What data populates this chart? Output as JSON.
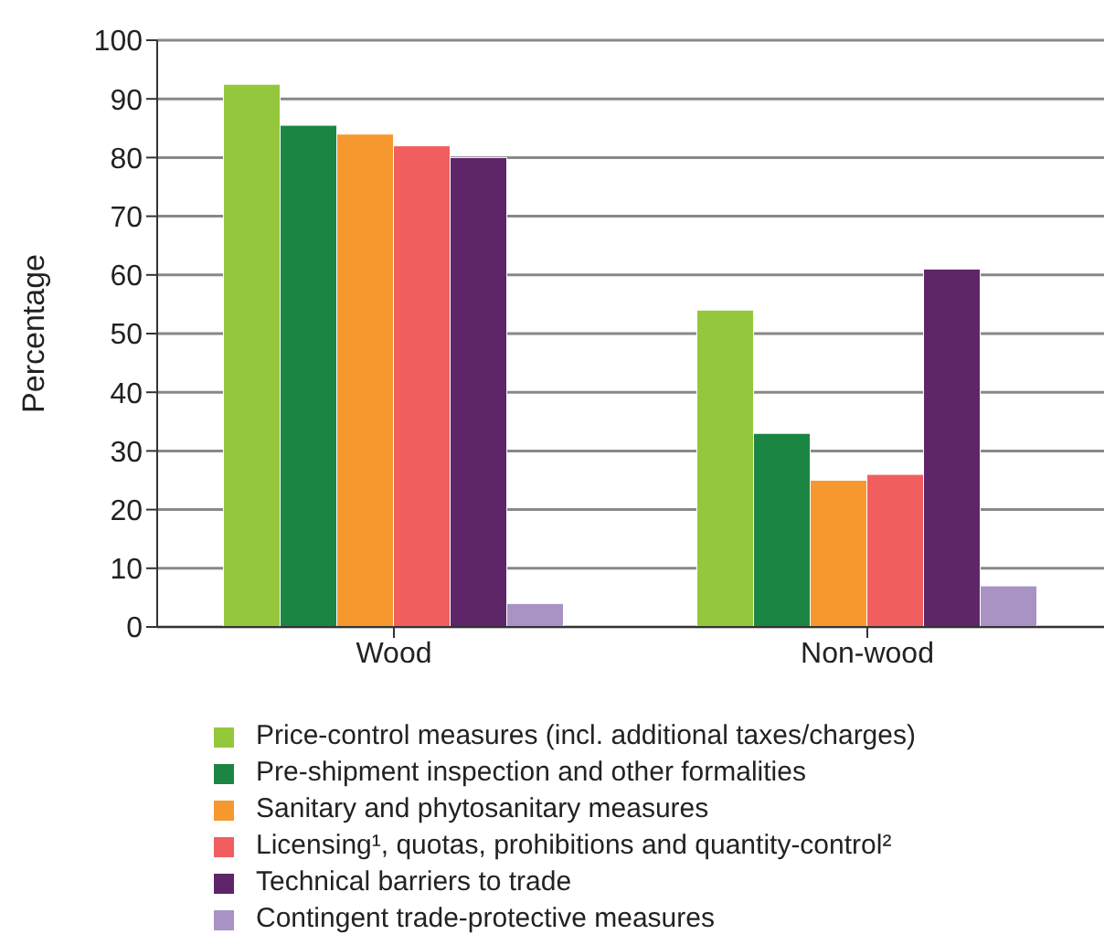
{
  "chart_data": {
    "type": "bar",
    "ylabel": "Percentage",
    "categories": [
      "Wood",
      "Non-wood"
    ],
    "series": [
      {
        "name": "Price-control measures (incl. additional taxes/charges)",
        "color": "#95c73d",
        "values": [
          92.5,
          54
        ]
      },
      {
        "name": "Pre-shipment inspection and other formalities",
        "color": "#1b8643",
        "values": [
          85.5,
          33
        ]
      },
      {
        "name": "Sanitary and phytosanitary measures",
        "color": "#f7982f",
        "values": [
          84,
          25
        ]
      },
      {
        "name": "Licensing¹, quotas, prohibitions and quantity-control²",
        "color": "#f05f5e",
        "values": [
          82,
          26
        ]
      },
      {
        "name": "Technical barriers to trade",
        "color": "#5f2569",
        "values": [
          80,
          61
        ]
      },
      {
        "name": "Contingent trade-protective measures",
        "color": "#a992c4",
        "values": [
          4,
          7
        ]
      }
    ],
    "ylim": [
      0,
      100
    ],
    "yticks": [
      0,
      10,
      20,
      30,
      40,
      50,
      60,
      70,
      80,
      90,
      100
    ],
    "grid": "y",
    "legend": "bottom"
  }
}
